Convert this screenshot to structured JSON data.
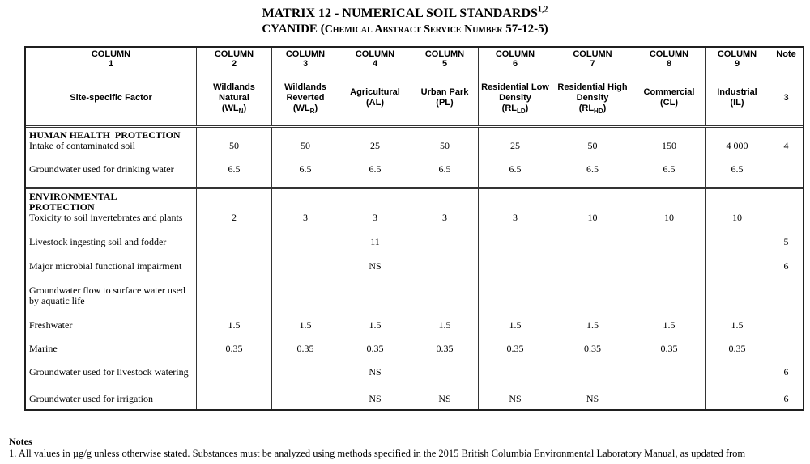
{
  "title": {
    "line1": "MATRIX 12 - NUMERICAL SOIL STANDARDS",
    "line1_sup": "1,2",
    "line2_prefix": "CYANIDE (",
    "line2_smallcaps": "Chemical Abstract Service Number",
    "line2_suffix": " 57-12-5)"
  },
  "table": {
    "header_row1": [
      {
        "l1": "COLUMN",
        "l2": "1"
      },
      {
        "l1": "COLUMN",
        "l2": "2"
      },
      {
        "l1": "COLUMN",
        "l2": "3"
      },
      {
        "l1": "COLUMN",
        "l2": "4"
      },
      {
        "l1": "COLUMN",
        "l2": "5"
      },
      {
        "l1": "COLUMN",
        "l2": "6"
      },
      {
        "l1": "COLUMN",
        "l2": "7"
      },
      {
        "l1": "COLUMN",
        "l2": "8"
      },
      {
        "l1": "COLUMN",
        "l2": "9"
      },
      {
        "l1": "Note",
        "l2": ""
      }
    ],
    "header_row2": {
      "factor_label": "Site-specific Factor",
      "uses": [
        {
          "name": "Wildlands Natural",
          "abbr_pre": "(WL",
          "abbr_sub": "N",
          "abbr_post": ")"
        },
        {
          "name": "Wildlands Reverted",
          "abbr_pre": "(WL",
          "abbr_sub": "R",
          "abbr_post": ")"
        },
        {
          "name": "Agricultural",
          "abbr_pre": "(AL",
          "abbr_sub": "",
          "abbr_post": ")"
        },
        {
          "name": "Urban Park",
          "abbr_pre": "(PL",
          "abbr_sub": "",
          "abbr_post": ")"
        },
        {
          "name": "Residential Low Density",
          "abbr_pre": "(RL",
          "abbr_sub": "LD",
          "abbr_post": ")"
        },
        {
          "name": "Residential High Density",
          "abbr_pre": "(RL",
          "abbr_sub": "HD",
          "abbr_post": ")"
        },
        {
          "name": "Commercial",
          "abbr_pre": "(CL",
          "abbr_sub": "",
          "abbr_post": ")"
        },
        {
          "name": "Industrial",
          "abbr_pre": "(IL",
          "abbr_sub": "",
          "abbr_post": ")"
        }
      ],
      "note": "3"
    },
    "sections": [
      {
        "title": "HUMAN HEALTH  PROTECTION",
        "factors": [
          {
            "label": "Intake of contaminated soil",
            "values": [
              "50",
              "50",
              "25",
              "50",
              "25",
              "50",
              "150",
              "4 000"
            ],
            "note": "4"
          },
          {
            "label": "Groundwater used for drinking water",
            "values": [
              "6.5",
              "6.5",
              "6.5",
              "6.5",
              "6.5",
              "6.5",
              "6.5",
              "6.5"
            ],
            "note": ""
          }
        ]
      },
      {
        "title": "ENVIRONMENTAL\nPROTECTION",
        "factors": [
          {
            "label": "Toxicity to soil invertebrates and plants",
            "values": [
              "2",
              "3",
              "3",
              "3",
              "3",
              "10",
              "10",
              "10"
            ],
            "note": ""
          },
          {
            "label": "Livestock ingesting soil and fodder",
            "values": [
              "",
              "",
              "11",
              "",
              "",
              "",
              "",
              ""
            ],
            "note": "5"
          },
          {
            "label": "Major microbial functional impairment",
            "values": [
              "",
              "",
              "NS",
              "",
              "",
              "",
              "",
              ""
            ],
            "note": "6"
          },
          {
            "label": "Groundwater flow to surface water used by aquatic life",
            "values": [
              "",
              "",
              "",
              "",
              "",
              "",
              "",
              ""
            ],
            "note": ""
          },
          {
            "label": "Freshwater",
            "values": [
              "1.5",
              "1.5",
              "1.5",
              "1.5",
              "1.5",
              "1.5",
              "1.5",
              "1.5"
            ],
            "note": ""
          },
          {
            "label": "Marine",
            "values": [
              "0.35",
              "0.35",
              "0.35",
              "0.35",
              "0.35",
              "0.35",
              "0.35",
              "0.35"
            ],
            "note": ""
          },
          {
            "label": "Groundwater used for livestock watering",
            "values": [
              "",
              "",
              "NS",
              "",
              "",
              "",
              "",
              ""
            ],
            "note": "6"
          },
          {
            "label": "Groundwater used for irrigation",
            "values": [
              "",
              "",
              "NS",
              "NS",
              "NS",
              "NS",
              "",
              ""
            ],
            "note": "6"
          }
        ]
      }
    ]
  },
  "notes": {
    "heading": "Notes",
    "items": [
      "1.  All values in µg/g unless otherwise stated.  Substances must be analyzed using methods specified in the 2015 British Columbia Environmental Laboratory Manual, as updated from"
    ]
  }
}
